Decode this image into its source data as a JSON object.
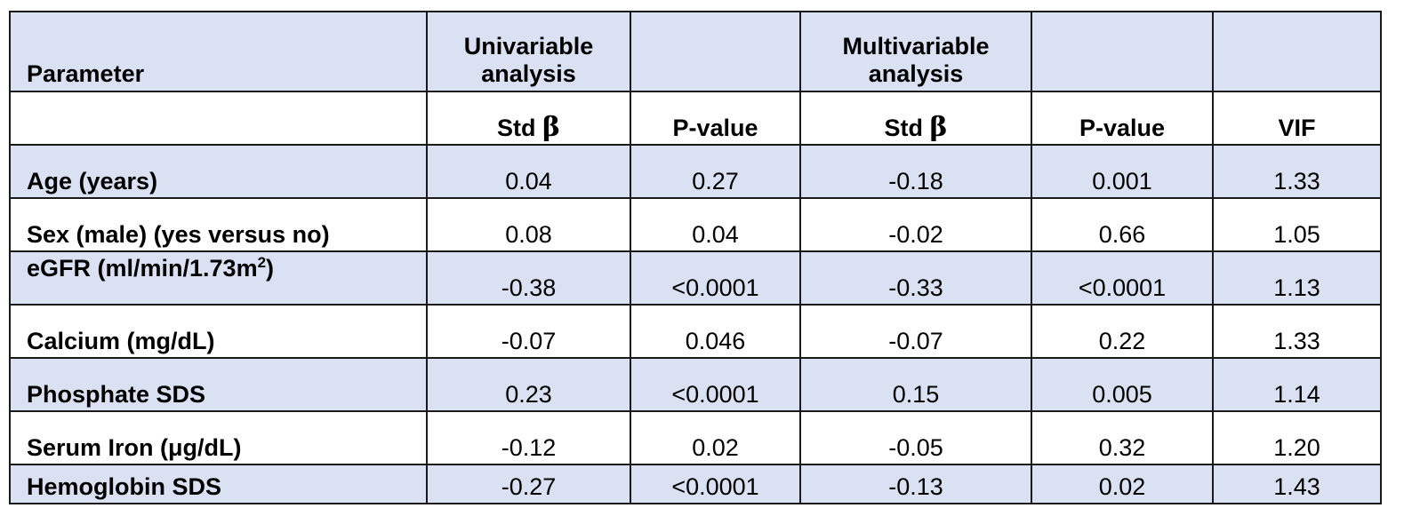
{
  "header": {
    "parameter": "Parameter",
    "univariable": "Univariable analysis",
    "multivariable": "Multivariable analysis"
  },
  "subheader": {
    "std_label": "Std",
    "beta_symbol": "β",
    "p_value": "P-value",
    "vif": "VIF"
  },
  "rows": [
    {
      "label": "Age (years)",
      "uni_beta": "0.04",
      "uni_p": "0.27",
      "multi_beta": "-0.18",
      "multi_p": "0.001",
      "vif": "1.33"
    },
    {
      "label": "Sex (male) (yes versus no)",
      "uni_beta": "0.08",
      "uni_p": "0.04",
      "multi_beta": "-0.02",
      "multi_p": "0.66",
      "vif": "1.05"
    },
    {
      "label": "eGFR (ml/min/1.73m",
      "label_sup": "2",
      "label_end": ")",
      "uni_beta": "-0.38",
      "uni_p": "<0.0001",
      "multi_beta": "-0.33",
      "multi_p": "<0.0001",
      "vif": "1.13"
    },
    {
      "label": "Calcium (mg/dL)",
      "uni_beta": "-0.07",
      "uni_p": "0.046",
      "multi_beta": "-0.07",
      "multi_p": "0.22",
      "vif": "1.33"
    },
    {
      "label": "Phosphate SDS",
      "uni_beta": "0.23",
      "uni_p": "<0.0001",
      "multi_beta": "0.15",
      "multi_p": "0.005",
      "vif": "1.14"
    },
    {
      "label": "Serum Iron (μg/dL)",
      "uni_beta": "-0.12",
      "uni_p": "0.02",
      "multi_beta": "-0.05",
      "multi_p": "0.32",
      "vif": "1.20"
    },
    {
      "label": "Hemoglobin SDS",
      "uni_beta": "-0.27",
      "uni_p": "<0.0001",
      "multi_beta": "-0.13",
      "multi_p": "0.02",
      "vif": "1.43"
    }
  ],
  "colors": {
    "shaded_row": "#d9e1f2",
    "plain_row": "#ffffff",
    "border": "#1a1a1a"
  }
}
